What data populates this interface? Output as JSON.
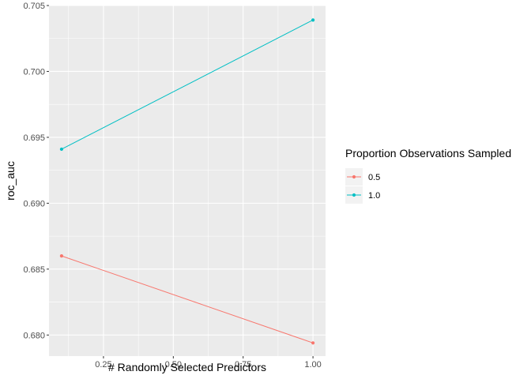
{
  "chart_data": {
    "type": "line",
    "xlabel": "# Randomly Selected Predictors",
    "ylabel": "roc_auc",
    "xlim": [
      0.055,
      1.045
    ],
    "ylim": [
      0.6784,
      0.705
    ],
    "x_ticks": [
      0.25,
      0.5,
      0.75,
      1.0
    ],
    "x_tick_labels": [
      "0.25",
      "0.50",
      "0.75",
      "1.00"
    ],
    "y_ticks": [
      0.68,
      0.685,
      0.69,
      0.695,
      0.7,
      0.705
    ],
    "y_tick_labels": [
      "0.680",
      "0.685",
      "0.690",
      "0.695",
      "0.700",
      "0.705"
    ],
    "grid": true,
    "legend": {
      "title": "Proportion Observations Sampled",
      "placement": "right"
    },
    "series": [
      {
        "name": "0.5",
        "color": "#F8766D",
        "x": [
          0.1,
          1.0
        ],
        "y": [
          0.686,
          0.6794
        ]
      },
      {
        "name": "1.0",
        "color": "#00BFC4",
        "x": [
          0.1,
          1.0
        ],
        "y": [
          0.6941,
          0.7039
        ]
      }
    ]
  }
}
